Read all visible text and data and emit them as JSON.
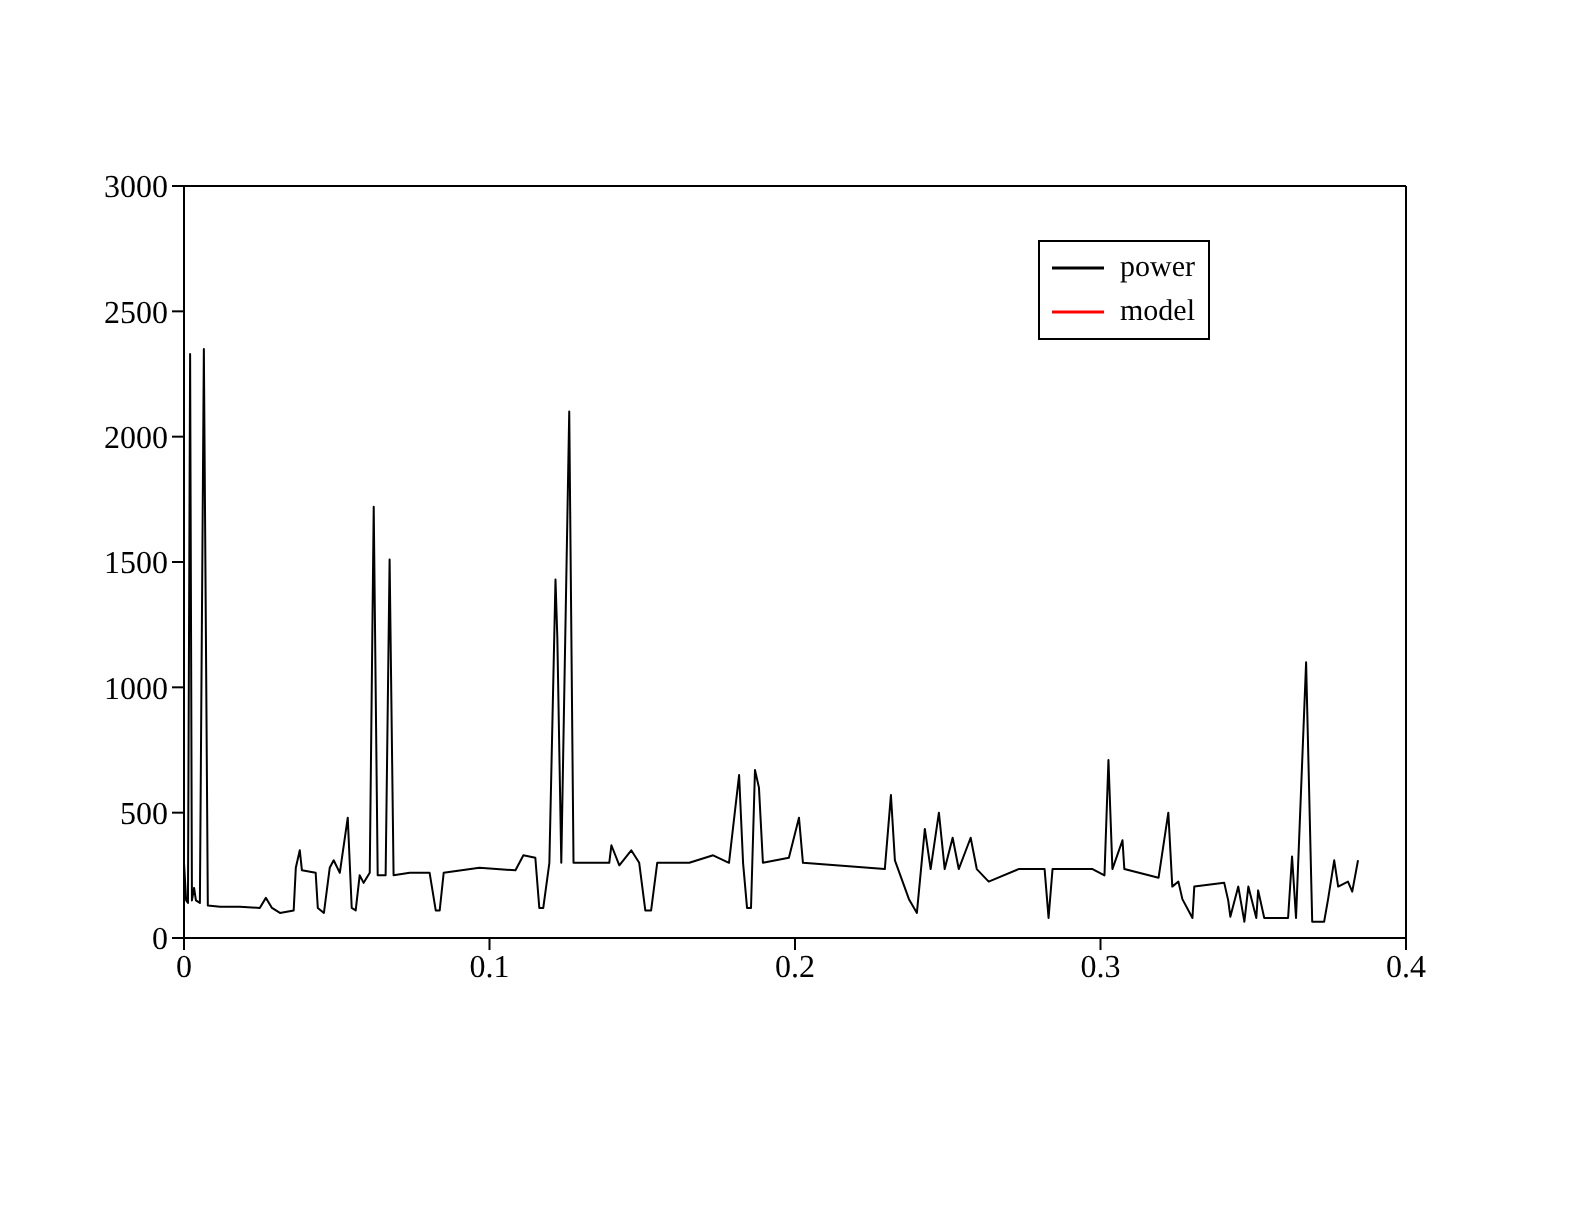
{
  "chart_data": {
    "type": "line",
    "x": [
      0,
      0.0007,
      0.0013,
      0.002,
      0.0026,
      0.0033,
      0.0039,
      0.0052,
      0.0065,
      0.0078,
      0.0118,
      0.0183,
      0.0248,
      0.0268,
      0.0288,
      0.0314,
      0.0359,
      0.0366,
      0.0379,
      0.0386,
      0.0431,
      0.0438,
      0.0458,
      0.0477,
      0.049,
      0.051,
      0.0536,
      0.0549,
      0.0562,
      0.0575,
      0.0588,
      0.0608,
      0.0621,
      0.0634,
      0.066,
      0.0673,
      0.0686,
      0.0739,
      0.0804,
      0.0824,
      0.0837,
      0.085,
      0.0967,
      0.1085,
      0.1111,
      0.115,
      0.1163,
      0.1176,
      0.1196,
      0.1216,
      0.1222,
      0.1235,
      0.1261,
      0.1275,
      0.1392,
      0.1399,
      0.1425,
      0.1464,
      0.149,
      0.151,
      0.1529,
      0.1549,
      0.1588,
      0.1654,
      0.1732,
      0.1784,
      0.1817,
      0.183,
      0.1843,
      0.1856,
      0.1869,
      0.1882,
      0.1895,
      0.198,
      0.2013,
      0.2026,
      0.2294,
      0.2314,
      0.2327,
      0.2373,
      0.2399,
      0.2425,
      0.2444,
      0.2471,
      0.249,
      0.2516,
      0.2536,
      0.2575,
      0.2595,
      0.2634,
      0.2732,
      0.2817,
      0.283,
      0.2843,
      0.2974,
      0.3013,
      0.3026,
      0.3039,
      0.3072,
      0.3078,
      0.319,
      0.3222,
      0.3235,
      0.3255,
      0.3268,
      0.3301,
      0.3307,
      0.3405,
      0.3418,
      0.3425,
      0.3451,
      0.3471,
      0.3484,
      0.351,
      0.3516,
      0.3536,
      0.3614,
      0.3627,
      0.364,
      0.3673,
      0.3693,
      0.3732,
      0.3745,
      0.3765,
      0.3778,
      0.381,
      0.3824,
      0.3843
    ],
    "series": [
      {
        "name": "power",
        "color": "#000000",
        "values": [
          300,
          150,
          140,
          2330,
          150,
          200,
          150,
          140,
          2350,
          130,
          125,
          125,
          120,
          160,
          120,
          100,
          110,
          280,
          350,
          270,
          260,
          120,
          100,
          280,
          310,
          260,
          480,
          120,
          110,
          250,
          220,
          260,
          1720,
          250,
          250,
          1510,
          250,
          260,
          260,
          110,
          110,
          260,
          280,
          270,
          330,
          320,
          120,
          120,
          300,
          1430,
          1200,
          300,
          2100,
          300,
          300,
          370,
          290,
          350,
          300,
          110,
          110,
          300,
          300,
          300,
          330,
          300,
          650,
          300,
          120,
          120,
          670,
          600,
          300,
          320,
          480,
          300,
          275,
          570,
          310,
          155,
          100,
          435,
          275,
          500,
          275,
          400,
          275,
          400,
          275,
          225,
          275,
          275,
          80,
          275,
          275,
          250,
          710,
          275,
          390,
          275,
          240,
          500,
          205,
          225,
          155,
          80,
          205,
          220,
          150,
          85,
          205,
          65,
          205,
          80,
          190,
          80,
          80,
          325,
          80,
          1100,
          65,
          65,
          155,
          310,
          205,
          225,
          185,
          310
        ]
      },
      {
        "name": "model",
        "color": "#ff0000",
        "values": [
          null,
          null,
          null,
          null,
          null,
          null,
          null,
          null,
          null,
          null,
          null,
          null,
          null,
          null,
          null,
          null,
          null,
          null,
          null,
          null,
          null,
          null,
          null,
          null,
          null,
          null,
          null,
          null,
          null,
          null,
          null,
          null,
          null,
          null,
          null,
          null,
          null,
          null,
          null,
          null,
          null,
          null,
          null,
          null,
          null,
          null,
          null,
          null,
          null,
          null,
          null,
          null,
          null,
          null,
          null,
          null,
          null,
          null,
          null,
          null,
          null,
          null,
          null,
          null,
          null,
          null,
          null,
          null,
          null,
          null,
          null,
          null,
          null,
          null,
          null,
          null,
          null,
          null,
          null,
          null,
          null,
          null,
          null,
          null,
          null,
          null,
          null,
          null,
          null,
          null,
          null,
          null,
          null,
          null,
          null,
          null,
          null,
          null,
          null,
          null,
          null,
          null,
          null,
          null,
          null,
          null,
          null,
          null,
          null,
          null,
          null,
          null,
          null,
          null,
          null,
          null,
          null,
          null,
          null,
          null,
          null,
          null,
          null,
          null,
          null,
          null,
          null,
          null
        ]
      }
    ],
    "xlim": [
      0,
      0.4
    ],
    "xticks": [
      0,
      0.1,
      0.2,
      0.3,
      0.4
    ],
    "ylim": [
      0,
      3000
    ],
    "yticks": [
      0,
      500,
      1000,
      1500,
      2000,
      2500,
      3000
    ],
    "legend": "top right",
    "marker": "none",
    "line_style": "solid"
  }
}
